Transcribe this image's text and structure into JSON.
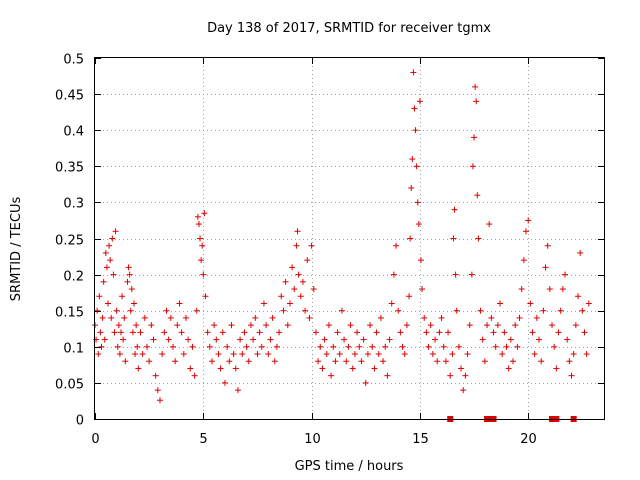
{
  "chart_data": {
    "type": "scatter",
    "title": "Day 138 of 2017, SRMTID for receiver tgmx",
    "xlabel": "GPS time / hours",
    "ylabel": "SRMTID / TECUs",
    "xlim": [
      0,
      23.5
    ],
    "ylim": [
      0,
      0.5
    ],
    "x_ticks": [
      0,
      5,
      10,
      15,
      20
    ],
    "x_tick_labels": [
      "0",
      "5",
      "10",
      "15",
      "20"
    ],
    "y_ticks": [
      0,
      0.05,
      0.1,
      0.15,
      0.2,
      0.25,
      0.3,
      0.35,
      0.4,
      0.45,
      0.5
    ],
    "y_tick_labels": [
      "0",
      "0.05",
      "0.1",
      "0.15",
      "0.2",
      "0.25",
      "0.3",
      "0.35",
      "0.4",
      "0.45",
      "0.5"
    ],
    "grid": true,
    "marker": "+",
    "color": "#e00000",
    "series": [
      {
        "name": "SRMTID",
        "points": [
          [
            0.0,
            0.13
          ],
          [
            0.05,
            0.11
          ],
          [
            0.1,
            0.15
          ],
          [
            0.15,
            0.09
          ],
          [
            0.2,
            0.17
          ],
          [
            0.25,
            0.12
          ],
          [
            0.3,
            0.1
          ],
          [
            0.35,
            0.14
          ],
          [
            0.4,
            0.19
          ],
          [
            0.45,
            0.11
          ],
          [
            0.5,
            0.23
          ],
          [
            0.55,
            0.21
          ],
          [
            0.6,
            0.16
          ],
          [
            0.65,
            0.24
          ],
          [
            0.7,
            0.22
          ],
          [
            0.75,
            0.14
          ],
          [
            0.8,
            0.25
          ],
          [
            0.85,
            0.2
          ],
          [
            0.9,
            0.12
          ],
          [
            0.95,
            0.26
          ],
          [
            1.0,
            0.15
          ],
          [
            1.05,
            0.1
          ],
          [
            1.1,
            0.13
          ],
          [
            1.15,
            0.09
          ],
          [
            1.2,
            0.12
          ],
          [
            1.25,
            0.17
          ],
          [
            1.3,
            0.11
          ],
          [
            1.35,
            0.14
          ],
          [
            1.4,
            0.08
          ],
          [
            1.5,
            0.19
          ],
          [
            1.55,
            0.21
          ],
          [
            1.6,
            0.2
          ],
          [
            1.65,
            0.15
          ],
          [
            1.7,
            0.18
          ],
          [
            1.75,
            0.12
          ],
          [
            1.8,
            0.16
          ],
          [
            1.85,
            0.09
          ],
          [
            1.9,
            0.13
          ],
          [
            1.95,
            0.1
          ],
          [
            2.0,
            0.07
          ],
          [
            2.1,
            0.12
          ],
          [
            2.2,
            0.09
          ],
          [
            2.3,
            0.14
          ],
          [
            2.4,
            0.1
          ],
          [
            2.5,
            0.08
          ],
          [
            2.6,
            0.13
          ],
          [
            2.7,
            0.11
          ],
          [
            2.8,
            0.06
          ],
          [
            2.9,
            0.04
          ],
          [
            3.0,
            0.026
          ],
          [
            3.1,
            0.09
          ],
          [
            3.2,
            0.12
          ],
          [
            3.3,
            0.15
          ],
          [
            3.4,
            0.11
          ],
          [
            3.5,
            0.14
          ],
          [
            3.6,
            0.1
          ],
          [
            3.7,
            0.08
          ],
          [
            3.8,
            0.13
          ],
          [
            3.9,
            0.16
          ],
          [
            4.0,
            0.12
          ],
          [
            4.1,
            0.09
          ],
          [
            4.2,
            0.14
          ],
          [
            4.3,
            0.11
          ],
          [
            4.4,
            0.07
          ],
          [
            4.5,
            0.1
          ],
          [
            4.6,
            0.06
          ],
          [
            4.7,
            0.15
          ],
          [
            4.75,
            0.28
          ],
          [
            4.8,
            0.27
          ],
          [
            4.85,
            0.25
          ],
          [
            4.9,
            0.22
          ],
          [
            4.95,
            0.24
          ],
          [
            5.0,
            0.2
          ],
          [
            5.05,
            0.285
          ],
          [
            5.1,
            0.17
          ],
          [
            5.2,
            0.12
          ],
          [
            5.3,
            0.1
          ],
          [
            5.4,
            0.08
          ],
          [
            5.5,
            0.13
          ],
          [
            5.6,
            0.11
          ],
          [
            5.7,
            0.09
          ],
          [
            5.8,
            0.07
          ],
          [
            5.9,
            0.12
          ],
          [
            6.0,
            0.05
          ],
          [
            6.1,
            0.1
          ],
          [
            6.2,
            0.08
          ],
          [
            6.3,
            0.13
          ],
          [
            6.4,
            0.09
          ],
          [
            6.5,
            0.07
          ],
          [
            6.6,
            0.04
          ],
          [
            6.7,
            0.11
          ],
          [
            6.8,
            0.09
          ],
          [
            6.9,
            0.12
          ],
          [
            7.0,
            0.1
          ],
          [
            7.1,
            0.08
          ],
          [
            7.2,
            0.13
          ],
          [
            7.3,
            0.11
          ],
          [
            7.4,
            0.14
          ],
          [
            7.5,
            0.09
          ],
          [
            7.6,
            0.12
          ],
          [
            7.7,
            0.1
          ],
          [
            7.8,
            0.16
          ],
          [
            7.9,
            0.13
          ],
          [
            8.0,
            0.09
          ],
          [
            8.1,
            0.11
          ],
          [
            8.2,
            0.14
          ],
          [
            8.3,
            0.08
          ],
          [
            8.4,
            0.1
          ],
          [
            8.5,
            0.12
          ],
          [
            8.6,
            0.17
          ],
          [
            8.7,
            0.15
          ],
          [
            8.8,
            0.19
          ],
          [
            8.9,
            0.13
          ],
          [
            9.0,
            0.16
          ],
          [
            9.1,
            0.21
          ],
          [
            9.2,
            0.18
          ],
          [
            9.3,
            0.24
          ],
          [
            9.35,
            0.26
          ],
          [
            9.4,
            0.2
          ],
          [
            9.5,
            0.17
          ],
          [
            9.6,
            0.19
          ],
          [
            9.7,
            0.15
          ],
          [
            9.8,
            0.22
          ],
          [
            9.9,
            0.14
          ],
          [
            10.0,
            0.24
          ],
          [
            10.1,
            0.18
          ],
          [
            10.2,
            0.12
          ],
          [
            10.3,
            0.08
          ],
          [
            10.4,
            0.1
          ],
          [
            10.5,
            0.07
          ],
          [
            10.6,
            0.11
          ],
          [
            10.7,
            0.09
          ],
          [
            10.8,
            0.13
          ],
          [
            10.9,
            0.06
          ],
          [
            11.0,
            0.1
          ],
          [
            11.1,
            0.08
          ],
          [
            11.2,
            0.12
          ],
          [
            11.3,
            0.09
          ],
          [
            11.4,
            0.15
          ],
          [
            11.5,
            0.11
          ],
          [
            11.6,
            0.08
          ],
          [
            11.7,
            0.1
          ],
          [
            11.8,
            0.13
          ],
          [
            11.9,
            0.07
          ],
          [
            12.0,
            0.09
          ],
          [
            12.1,
            0.12
          ],
          [
            12.2,
            0.1
          ],
          [
            12.3,
            0.08
          ],
          [
            12.4,
            0.11
          ],
          [
            12.5,
            0.05
          ],
          [
            12.6,
            0.09
          ],
          [
            12.7,
            0.13
          ],
          [
            12.8,
            0.1
          ],
          [
            12.9,
            0.07
          ],
          [
            13.0,
            0.12
          ],
          [
            13.1,
            0.09
          ],
          [
            13.2,
            0.14
          ],
          [
            13.3,
            0.08
          ],
          [
            13.4,
            0.1
          ],
          [
            13.5,
            0.06
          ],
          [
            13.6,
            0.11
          ],
          [
            13.7,
            0.16
          ],
          [
            13.8,
            0.2
          ],
          [
            13.9,
            0.24
          ],
          [
            14.0,
            0.15
          ],
          [
            14.1,
            0.12
          ],
          [
            14.2,
            0.1
          ],
          [
            14.3,
            0.09
          ],
          [
            14.4,
            0.13
          ],
          [
            14.5,
            0.17
          ],
          [
            14.55,
            0.25
          ],
          [
            14.6,
            0.32
          ],
          [
            14.65,
            0.36
          ],
          [
            14.7,
            0.48
          ],
          [
            14.75,
            0.43
          ],
          [
            14.8,
            0.4
          ],
          [
            14.85,
            0.35
          ],
          [
            14.9,
            0.3
          ],
          [
            14.95,
            0.27
          ],
          [
            15.0,
            0.44
          ],
          [
            15.05,
            0.22
          ],
          [
            15.1,
            0.18
          ],
          [
            15.2,
            0.14
          ],
          [
            15.3,
            0.12
          ],
          [
            15.4,
            0.1
          ],
          [
            15.5,
            0.13
          ],
          [
            15.6,
            0.09
          ],
          [
            15.7,
            0.11
          ],
          [
            15.8,
            0.08
          ],
          [
            15.9,
            0.12
          ],
          [
            16.0,
            0.14
          ],
          [
            16.1,
            0.1
          ],
          [
            16.2,
            0.08
          ],
          [
            16.3,
            0.12
          ],
          [
            16.4,
            0.06
          ],
          [
            16.5,
            0.09
          ],
          [
            16.55,
            0.25
          ],
          [
            16.6,
            0.29
          ],
          [
            16.65,
            0.2
          ],
          [
            16.7,
            0.15
          ],
          [
            16.8,
            0.1
          ],
          [
            16.9,
            0.07
          ],
          [
            17.0,
            0.04
          ],
          [
            17.1,
            0.06
          ],
          [
            17.2,
            0.09
          ],
          [
            17.3,
            0.13
          ],
          [
            17.4,
            0.2
          ],
          [
            17.45,
            0.35
          ],
          [
            17.5,
            0.39
          ],
          [
            17.55,
            0.46
          ],
          [
            17.6,
            0.44
          ],
          [
            17.65,
            0.31
          ],
          [
            17.7,
            0.25
          ],
          [
            17.8,
            0.15
          ],
          [
            17.9,
            0.11
          ],
          [
            18.0,
            0.08
          ],
          [
            18.1,
            0.13
          ],
          [
            18.2,
            0.27
          ],
          [
            18.3,
            0.14
          ],
          [
            18.4,
            0.12
          ],
          [
            18.5,
            0.1
          ],
          [
            18.6,
            0.13
          ],
          [
            18.7,
            0.16
          ],
          [
            18.8,
            0.09
          ],
          [
            18.9,
            0.12
          ],
          [
            19.0,
            0.1
          ],
          [
            19.1,
            0.07
          ],
          [
            19.2,
            0.11
          ],
          [
            19.3,
            0.08
          ],
          [
            19.4,
            0.13
          ],
          [
            19.5,
            0.1
          ],
          [
            19.6,
            0.14
          ],
          [
            19.7,
            0.18
          ],
          [
            19.8,
            0.22
          ],
          [
            19.9,
            0.26
          ],
          [
            20.0,
            0.275
          ],
          [
            20.1,
            0.16
          ],
          [
            20.2,
            0.12
          ],
          [
            20.3,
            0.09
          ],
          [
            20.4,
            0.14
          ],
          [
            20.5,
            0.11
          ],
          [
            20.6,
            0.08
          ],
          [
            20.7,
            0.15
          ],
          [
            20.8,
            0.21
          ],
          [
            20.9,
            0.24
          ],
          [
            21.0,
            0.18
          ],
          [
            21.1,
            0.13
          ],
          [
            21.2,
            0.1
          ],
          [
            21.3,
            0.07
          ],
          [
            21.4,
            0.12
          ],
          [
            21.5,
            0.15
          ],
          [
            21.6,
            0.18
          ],
          [
            21.7,
            0.2
          ],
          [
            21.8,
            0.11
          ],
          [
            21.9,
            0.08
          ],
          [
            22.0,
            0.06
          ],
          [
            22.1,
            0.09
          ],
          [
            22.2,
            0.13
          ],
          [
            22.3,
            0.17
          ],
          [
            22.4,
            0.23
          ],
          [
            22.5,
            0.15
          ],
          [
            22.6,
            0.12
          ],
          [
            22.7,
            0.09
          ],
          [
            22.8,
            0.16
          ]
        ]
      }
    ],
    "gap_markers_x": [
      16.4,
      18.1,
      18.3,
      18.4,
      21.1,
      21.2,
      21.3,
      22.1
    ]
  }
}
